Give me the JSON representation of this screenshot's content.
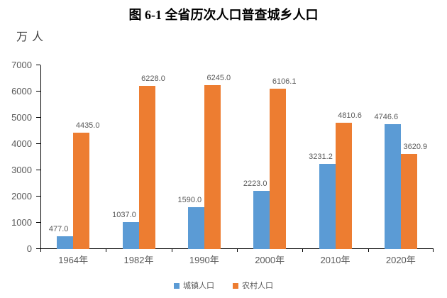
{
  "chart_data": {
    "type": "bar",
    "title": "图 6-1 全省历次人口普查城乡人口",
    "unit": "万人",
    "categories": [
      "1964年",
      "1982年",
      "1990年",
      "2000年",
      "2010年",
      "2020年"
    ],
    "series": [
      {
        "name": "城镇人口",
        "color": "#5B9BD5",
        "values": [
          477.0,
          1037.0,
          1590.0,
          2223.0,
          3231.2,
          4746.6
        ]
      },
      {
        "name": "农村人口",
        "color": "#ED7D31",
        "values": [
          4435.0,
          6228.0,
          6245.0,
          6106.1,
          4810.6,
          3620.9
        ]
      }
    ],
    "ylim": [
      0,
      7000
    ],
    "yticks": [
      0,
      1000,
      2000,
      3000,
      4000,
      5000,
      6000,
      7000
    ],
    "grid": false,
    "data_labels": "outside_end",
    "label_decimals": 1,
    "legend_position": "bottom",
    "axis_color": "#000000",
    "text_color": "#595959"
  }
}
